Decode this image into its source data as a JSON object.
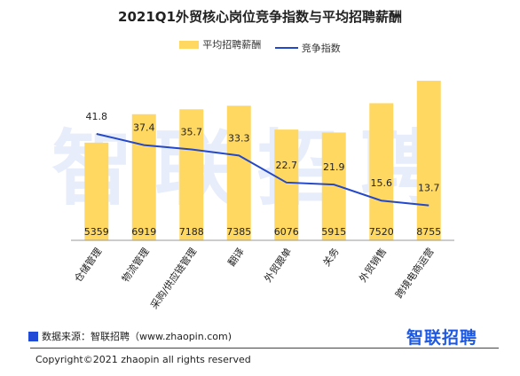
{
  "title": "2021Q1外贸核心岗位竞争指数与平均招聘薪酬",
  "legend": {
    "bar_label": "平均招聘薪酬",
    "line_label": "竞争指数"
  },
  "watermark": "智联招聘",
  "footer": {
    "source": "数据来源：智联招聘（www.zhaopin.com)",
    "brand": "智联招聘",
    "copyright": "Copyright©2021 zhaopin all rights reserved"
  },
  "colors": {
    "bar": "#FFD862",
    "line": "#2348C9",
    "accent": "#1F4BD6"
  },
  "chart_data": {
    "type": "bar",
    "categories": [
      "仓储管理",
      "物流管理",
      "采购/供应链管理",
      "翻译",
      "外贸跟单",
      "关务",
      "外贸销售",
      "跨境电商运营"
    ],
    "series": [
      {
        "name": "平均招聘薪酬",
        "type": "bar",
        "values": [
          5359,
          6919,
          7188,
          7385,
          6076,
          5915,
          7520,
          8755
        ]
      },
      {
        "name": "竞争指数",
        "type": "line",
        "values": [
          41.8,
          37.4,
          35.7,
          33.3,
          22.7,
          21.9,
          15.6,
          13.7
        ]
      }
    ],
    "bar_axis_range": [
      0,
      9000
    ],
    "line_axis_range": [
      0,
      70
    ],
    "legend_position": "top-center",
    "grid": false
  }
}
